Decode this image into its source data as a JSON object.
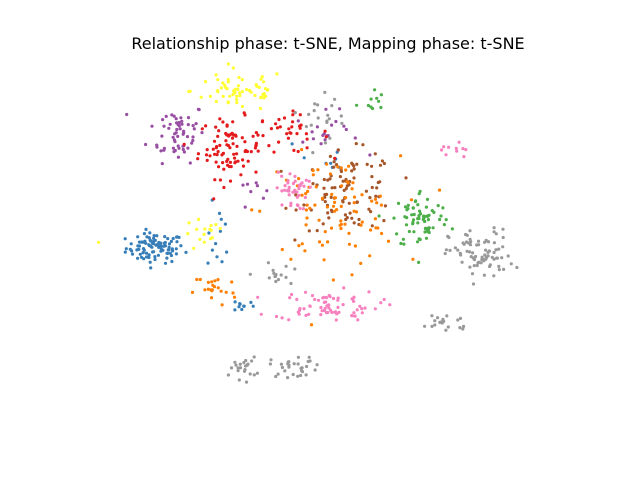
{
  "chart_data": {
    "type": "scatter",
    "title": "Relationship phase: t-SNE, Mapping phase: t-SNE",
    "xlabel": "",
    "ylabel": "",
    "axes_visible": false,
    "grid": false,
    "legend": "none",
    "xlim": [
      0,
      100
    ],
    "ylim": [
      0,
      100
    ],
    "clusters": [
      {
        "color": "#377eb8",
        "center": [
          8.0,
          48.0
        ],
        "spread": [
          5.5,
          3.5
        ],
        "count": 95
      },
      {
        "color": "#377eb8",
        "center": [
          22.5,
          51.0
        ],
        "spread": [
          2.2,
          8.0
        ],
        "count": 12
      },
      {
        "color": "#377eb8",
        "center": [
          28.0,
          32.0
        ],
        "spread": [
          2.0,
          1.5
        ],
        "count": 10
      },
      {
        "color": "#377eb8",
        "center": [
          46.0,
          72.0
        ],
        "spread": [
          5.0,
          8.0
        ],
        "count": 8
      },
      {
        "color": "#984ea3",
        "center": [
          13.0,
          80.5
        ],
        "spread": [
          5.5,
          7.0
        ],
        "count": 60
      },
      {
        "color": "#984ea3",
        "center": [
          30.0,
          65.0
        ],
        "spread": [
          2.5,
          4.0
        ],
        "count": 8
      },
      {
        "color": "#984ea3",
        "center": [
          47.0,
          80.0
        ],
        "spread": [
          6.0,
          5.0
        ],
        "count": 20
      },
      {
        "color": "#e41a1c",
        "center": [
          25.0,
          76.0
        ],
        "spread": [
          6.0,
          7.0
        ],
        "count": 85
      },
      {
        "color": "#e41a1c",
        "center": [
          38.0,
          80.0
        ],
        "spread": [
          8.0,
          4.5
        ],
        "count": 35
      },
      {
        "color": "#ffff33",
        "center": [
          27.0,
          92.0
        ],
        "spread": [
          9.0,
          5.0
        ],
        "count": 60
      },
      {
        "color": "#ffff33",
        "center": [
          19.0,
          51.5
        ],
        "spread": [
          4.0,
          4.0
        ],
        "count": 16
      },
      {
        "color": "#ffff33",
        "center": [
          -5.0,
          49.5
        ],
        "spread": [
          0.5,
          0.5
        ],
        "count": 1
      },
      {
        "color": "#a65628",
        "center": [
          52.0,
          64.0
        ],
        "spread": [
          9.0,
          9.0
        ],
        "count": 95
      },
      {
        "color": "#ff7f00",
        "center": [
          48.0,
          58.0
        ],
        "spread": [
          13.0,
          13.0
        ],
        "count": 90
      },
      {
        "color": "#ff7f00",
        "center": [
          21.5,
          36.5
        ],
        "spread": [
          4.0,
          4.0
        ],
        "count": 22
      },
      {
        "color": "#4daf4a",
        "center": [
          68.5,
          56.0
        ],
        "spread": [
          5.5,
          7.0
        ],
        "count": 70
      },
      {
        "color": "#4daf4a",
        "center": [
          57.0,
          89.0
        ],
        "spread": [
          2.5,
          3.0
        ],
        "count": 10
      },
      {
        "color": "#f781bf",
        "center": [
          47.0,
          32.0
        ],
        "spread": [
          10.0,
          3.5
        ],
        "count": 70
      },
      {
        "color": "#f781bf",
        "center": [
          39.0,
          64.0
        ],
        "spread": [
          3.0,
          4.5
        ],
        "count": 40
      },
      {
        "color": "#f781bf",
        "center": [
          76.0,
          75.5
        ],
        "spread": [
          2.5,
          2.5
        ],
        "count": 10
      },
      {
        "color": "#999999",
        "center": [
          82.0,
          46.0
        ],
        "spread": [
          6.0,
          6.0
        ],
        "count": 80
      },
      {
        "color": "#999999",
        "center": [
          74.0,
          27.5
        ],
        "spread": [
          5.0,
          2.5
        ],
        "count": 20
      },
      {
        "color": "#999999",
        "center": [
          28.0,
          14.5
        ],
        "spread": [
          2.5,
          2.5
        ],
        "count": 22
      },
      {
        "color": "#999999",
        "center": [
          40.0,
          15.0
        ],
        "spread": [
          5.0,
          2.5
        ],
        "count": 30
      },
      {
        "color": "#999999",
        "center": [
          35.0,
          40.0
        ],
        "spread": [
          3.0,
          3.0
        ],
        "count": 15
      },
      {
        "color": "#999999",
        "center": [
          46.0,
          86.0
        ],
        "spread": [
          8.0,
          6.0
        ],
        "count": 20
      }
    ]
  }
}
